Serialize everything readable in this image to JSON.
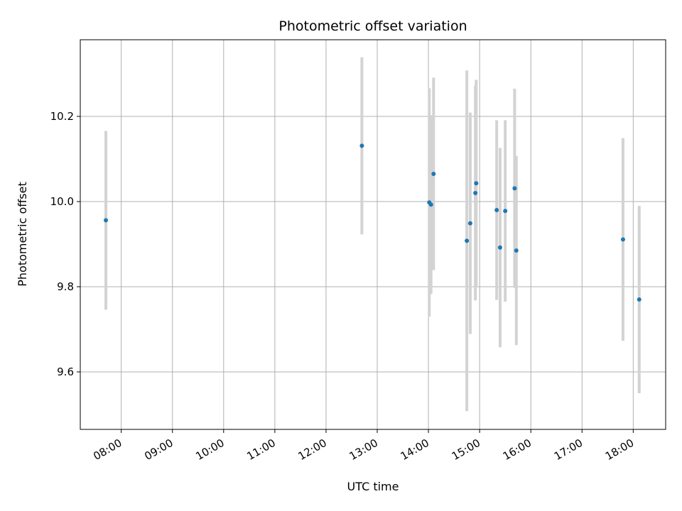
{
  "chart_data": {
    "type": "scatter",
    "title": "Photometric offset variation",
    "xlabel": "UTC time",
    "ylabel": "Photometric offset",
    "xlim": [
      "07:12",
      "18:38"
    ],
    "ylim": [
      9.465,
      10.38
    ],
    "grid": true,
    "legend": "none",
    "x_ticks": [
      "08:00",
      "09:00",
      "10:00",
      "11:00",
      "12:00",
      "13:00",
      "14:00",
      "15:00",
      "16:00",
      "17:00",
      "18:00"
    ],
    "y_ticks": [
      9.6,
      9.8,
      10.0,
      10.2
    ],
    "y_tick_labels": [
      "9.6",
      "9.8",
      "10.0",
      "10.2"
    ],
    "marker_color": "#1f77b4",
    "errorbar_color": "#d3d3d3",
    "points": [
      {
        "x": "07:42",
        "y": 9.956,
        "err": 0.21
      },
      {
        "x": "12:42",
        "y": 10.131,
        "err": 0.208
      },
      {
        "x": "14:01",
        "y": 9.998,
        "err": 0.268
      },
      {
        "x": "14:03",
        "y": 9.993,
        "err": 0.21
      },
      {
        "x": "14:06",
        "y": 10.065,
        "err": 0.226
      },
      {
        "x": "14:45",
        "y": 9.908,
        "err": 0.4
      },
      {
        "x": "14:49",
        "y": 9.949,
        "err": 0.26
      },
      {
        "x": "14:55",
        "y": 10.02,
        "err": 0.252
      },
      {
        "x": "14:56",
        "y": 10.043,
        "err": 0.243
      },
      {
        "x": "15:20",
        "y": 9.98,
        "err": 0.211
      },
      {
        "x": "15:24",
        "y": 9.892,
        "err": 0.234
      },
      {
        "x": "15:30",
        "y": 9.978,
        "err": 0.213
      },
      {
        "x": "15:41",
        "y": 10.031,
        "err": 0.234
      },
      {
        "x": "15:43",
        "y": 9.885,
        "err": 0.222
      },
      {
        "x": "17:48",
        "y": 9.911,
        "err": 0.238
      },
      {
        "x": "18:07",
        "y": 9.77,
        "err": 0.22
      }
    ]
  }
}
